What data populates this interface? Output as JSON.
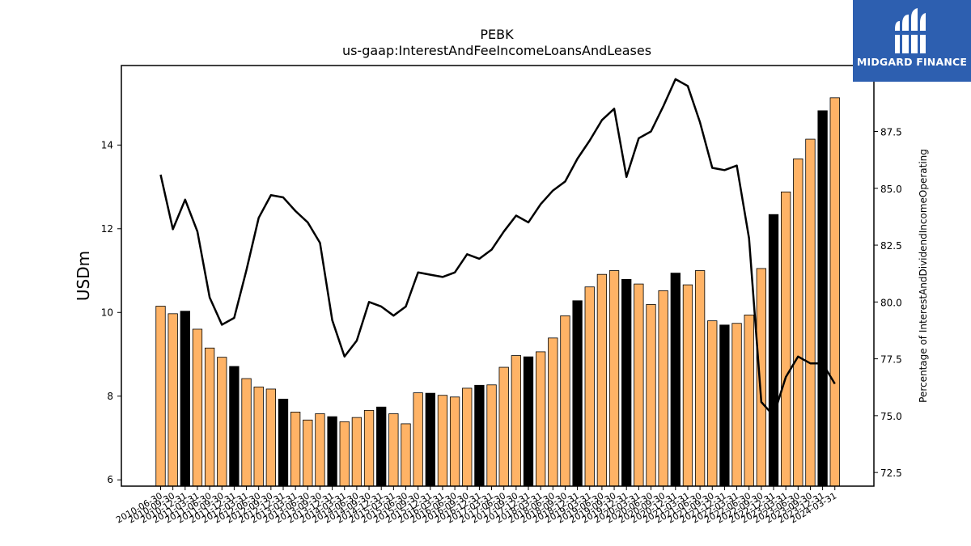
{
  "chart_data": {
    "type": "bar",
    "title": "PEBK",
    "subtitle": "us-gaap:InterestAndFeeIncomeLoansAndLeases",
    "ylabel": "USDm",
    "y2label": "Percentage of InterestAndDividendIncomeOperating",
    "ylim": [
      5.85,
      15.9
    ],
    "y2lim": [
      71.9,
      90.4
    ],
    "yticks": [
      6,
      8,
      10,
      12,
      14
    ],
    "y2ticks": [
      72.5,
      75.0,
      77.5,
      80.0,
      82.5,
      85.0,
      87.5
    ],
    "y2tick_labels": [
      "72.5",
      "75.0",
      "77.5",
      "80.0",
      "82.5",
      "85.0",
      "87.5"
    ],
    "categories": [
      "2010-06-30",
      "2010-09-30",
      "2010-12-31",
      "2011-03-31",
      "2011-06-30",
      "2011-09-30",
      "2011-12-31",
      "2012-03-31",
      "2012-06-30",
      "2012-09-30",
      "2012-12-31",
      "2013-03-31",
      "2013-06-30",
      "2013-09-30",
      "2013-12-31",
      "2014-03-31",
      "2014-06-30",
      "2014-09-30",
      "2014-12-31",
      "2015-03-31",
      "2015-06-30",
      "2015-09-30",
      "2015-12-31",
      "2016-03-31",
      "2016-06-30",
      "2016-09-30",
      "2016-12-31",
      "2017-03-31",
      "2017-06-30",
      "2017-09-30",
      "2017-12-31",
      "2018-03-31",
      "2018-06-30",
      "2018-09-30",
      "2018-12-31",
      "2019-03-31",
      "2019-06-30",
      "2019-09-30",
      "2019-12-31",
      "2020-03-31",
      "2020-06-30",
      "2020-09-30",
      "2020-12-31",
      "2021-03-31",
      "2021-06-30",
      "2021-09-30",
      "2021-12-31",
      "2022-03-31",
      "2022-06-30",
      "2022-09-30",
      "2022-12-31",
      "2023-03-31",
      "2023-06-30",
      "2023-09-30",
      "2023-12-31",
      "2024-03-31"
    ],
    "series": [
      {
        "kind": "bar",
        "values": [
          10.15,
          9.97,
          10.03,
          9.6,
          9.15,
          8.93,
          8.71,
          8.42,
          8.22,
          8.17,
          7.93,
          7.62,
          7.43,
          7.58,
          7.51,
          7.39,
          7.49,
          7.66,
          7.74,
          7.58,
          7.34,
          8.08,
          8.07,
          8.02,
          7.98,
          8.19,
          8.26,
          8.27,
          8.69,
          8.97,
          8.94,
          9.06,
          9.39,
          9.92,
          10.28,
          10.61,
          10.91,
          11.0,
          10.79,
          10.68,
          10.19,
          10.52,
          10.94,
          10.66,
          11.0,
          9.8,
          9.7,
          9.74,
          9.94,
          11.05,
          12.34,
          12.88,
          13.67,
          14.14,
          14.82,
          15.13
        ],
        "highlight": [
          false,
          false,
          true,
          false,
          false,
          false,
          true,
          false,
          false,
          false,
          true,
          false,
          false,
          false,
          true,
          false,
          false,
          false,
          true,
          false,
          false,
          false,
          true,
          false,
          false,
          false,
          true,
          false,
          false,
          false,
          true,
          false,
          false,
          false,
          true,
          false,
          false,
          false,
          true,
          false,
          false,
          false,
          true,
          false,
          false,
          false,
          true,
          false,
          false,
          false,
          true,
          false,
          false,
          false,
          true,
          false
        ]
      },
      {
        "kind": "line",
        "axis": "right",
        "values": [
          85.6,
          83.2,
          84.5,
          83.1,
          80.2,
          79.0,
          79.3,
          81.4,
          83.7,
          84.7,
          84.6,
          84.0,
          83.5,
          82.6,
          79.2,
          77.6,
          78.3,
          80.0,
          79.8,
          79.4,
          79.8,
          81.3,
          81.2,
          81.1,
          81.3,
          82.1,
          81.9,
          82.3,
          83.1,
          83.8,
          83.5,
          84.3,
          84.9,
          85.3,
          86.3,
          87.1,
          88.0,
          88.5,
          85.5,
          87.2,
          87.5,
          88.6,
          89.8,
          89.5,
          87.9,
          85.9,
          85.8,
          86.0,
          82.8,
          75.6,
          75.0,
          76.7,
          77.6,
          77.3,
          77.3,
          76.4
        ]
      }
    ],
    "colors": {
      "bar": "#ffb366",
      "bar_highlight": "#000000",
      "line": "#000000"
    }
  },
  "logo": {
    "text": "MIDGARD FINANCE",
    "bg": "#2d5fb0"
  }
}
